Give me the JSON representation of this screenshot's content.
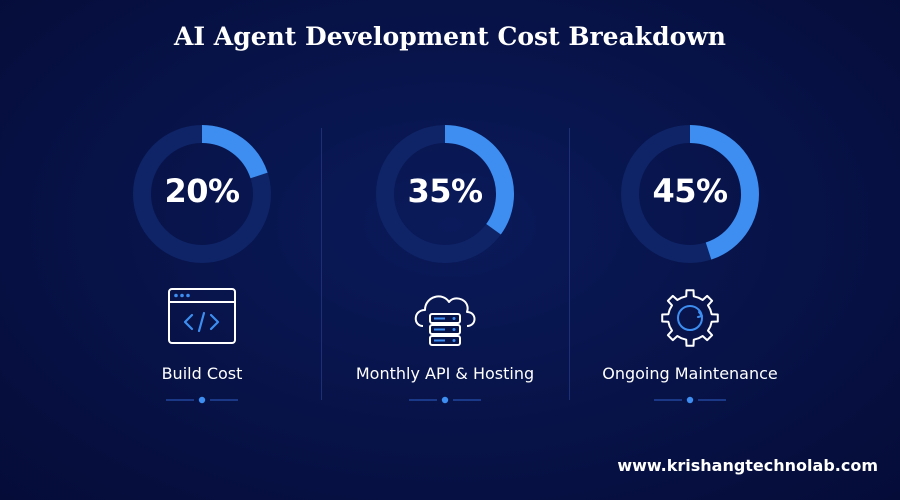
{
  "title": "AI Agent Development Cost Breakdown",
  "footer": "www.krishangtechnolab.com",
  "colors": {
    "accent": "#3d8ef0",
    "track": "#0f2466",
    "background": "#071247"
  },
  "chart_data": {
    "type": "pie",
    "variant": "donut-gauges",
    "categories": [
      "Build Cost",
      "Monthly API & Hosting",
      "Ongoing Maintenance"
    ],
    "values": [
      20,
      35,
      45
    ],
    "value_labels": [
      "20%",
      "35%",
      "45%"
    ],
    "unit": "%"
  },
  "items": [
    {
      "label": "Build Cost",
      "value_label": "20%",
      "icon": "code-window-icon"
    },
    {
      "label": "Monthly API & Hosting",
      "value_label": "35%",
      "icon": "cloud-server-icon"
    },
    {
      "label": "Ongoing Maintenance",
      "value_label": "45%",
      "icon": "gear-icon"
    }
  ]
}
